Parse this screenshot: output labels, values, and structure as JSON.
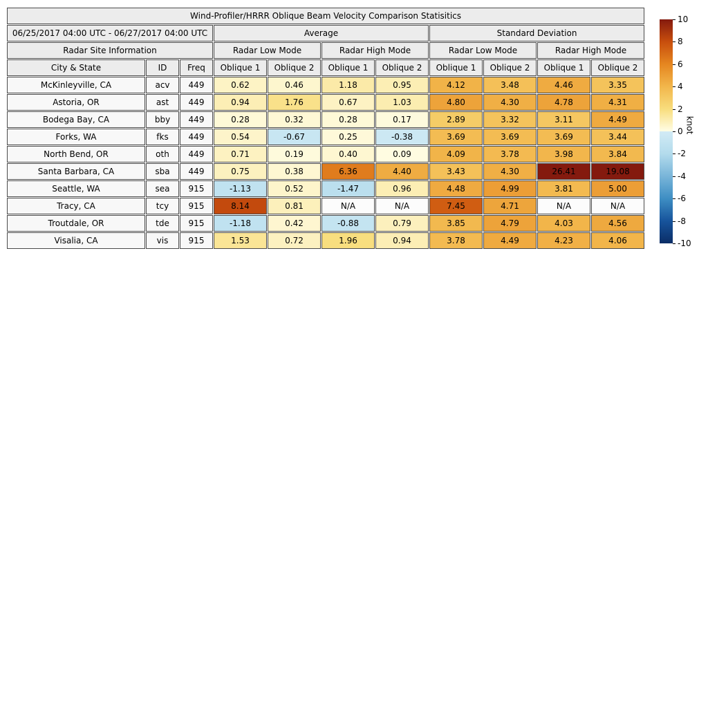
{
  "chart_data": {
    "type": "heatmap",
    "title": "Wind-Profiler/HRRR Oblique Beam Velocity Comparison Statisitics",
    "unit": "knot",
    "value_range": [
      -10,
      10
    ],
    "rows": [
      {
        "city": "McKinleyville, CA",
        "id": "acv",
        "freq": "449",
        "values": [
          "0.62",
          "0.46",
          "1.18",
          "0.95",
          "4.12",
          "3.48",
          "4.46",
          "3.35"
        ]
      },
      {
        "city": "Astoria, OR",
        "id": "ast",
        "freq": "449",
        "values": [
          "0.94",
          "1.76",
          "0.67",
          "1.03",
          "4.80",
          "4.30",
          "4.78",
          "4.31"
        ]
      },
      {
        "city": "Bodega Bay, CA",
        "id": "bby",
        "freq": "449",
        "values": [
          "0.28",
          "0.32",
          "0.28",
          "0.17",
          "2.89",
          "3.32",
          "3.11",
          "4.49"
        ]
      },
      {
        "city": "Forks, WA",
        "id": "fks",
        "freq": "449",
        "values": [
          "0.54",
          "-0.67",
          "0.25",
          "-0.38",
          "3.69",
          "3.69",
          "3.69",
          "3.44"
        ]
      },
      {
        "city": "North Bend, OR",
        "id": "oth",
        "freq": "449",
        "values": [
          "0.71",
          "0.19",
          "0.40",
          "0.09",
          "4.09",
          "3.78",
          "3.98",
          "3.84"
        ]
      },
      {
        "city": "Santa Barbara, CA",
        "id": "sba",
        "freq": "449",
        "values": [
          "0.75",
          "0.38",
          "6.36",
          "4.40",
          "3.43",
          "4.30",
          "26.41",
          "19.08"
        ]
      },
      {
        "city": "Seattle, WA",
        "id": "sea",
        "freq": "915",
        "values": [
          "-1.13",
          "0.52",
          "-1.47",
          "0.96",
          "4.48",
          "4.99",
          "3.81",
          "5.00"
        ]
      },
      {
        "city": "Tracy, CA",
        "id": "tcy",
        "freq": "915",
        "values": [
          "8.14",
          "0.81",
          "N/A",
          "N/A",
          "7.45",
          "4.71",
          "N/A",
          "N/A"
        ]
      },
      {
        "city": "Troutdale, OR",
        "id": "tde",
        "freq": "915",
        "values": [
          "-1.18",
          "0.42",
          "-0.88",
          "0.79",
          "3.85",
          "4.79",
          "4.03",
          "4.56"
        ]
      },
      {
        "city": "Visalia, CA",
        "id": "vis",
        "freq": "915",
        "values": [
          "1.53",
          "0.72",
          "1.96",
          "0.94",
          "3.78",
          "4.49",
          "4.23",
          "4.06"
        ]
      }
    ]
  },
  "header": {
    "date_range": "06/25/2017 04:00 UTC - 06/27/2017 04:00 UTC",
    "stat_groups": [
      "Average",
      "Standard Deviation"
    ],
    "site_info": "Radar Site Information",
    "mode_labels": [
      "Radar Low Mode",
      "Radar High Mode",
      "Radar Low Mode",
      "Radar High Mode"
    ],
    "column_labels": [
      "City & State",
      "ID",
      "Freq",
      "Oblique 1",
      "Oblique 2",
      "Oblique 1",
      "Oblique 2",
      "Oblique 1",
      "Oblique 2",
      "Oblique 1",
      "Oblique 2"
    ]
  },
  "colorbar": {
    "label": "knot",
    "min": -10,
    "max": 10,
    "ticks": [
      "10",
      "8",
      "6",
      "4",
      "2",
      "0",
      "-2",
      "-4",
      "-6",
      "-8",
      "-10"
    ],
    "positive_stops": [
      [
        0,
        "#fffde6"
      ],
      [
        2,
        "#f8dd7d"
      ],
      [
        4,
        "#f2b64b"
      ],
      [
        6,
        "#e58620"
      ],
      [
        8,
        "#c84e0d"
      ],
      [
        10,
        "#841a0e"
      ]
    ],
    "negative_stops": [
      [
        -10,
        "#0b2d66"
      ],
      [
        -8,
        "#17549c"
      ],
      [
        -6,
        "#3e8ec3"
      ],
      [
        -4,
        "#79b5d9"
      ],
      [
        -2,
        "#b3dbec"
      ],
      [
        0,
        "#d2ebf5"
      ]
    ]
  },
  "colors": {
    "background": "#ffffff",
    "border": "#4a4a4a",
    "header_bg": "#ececec",
    "label_bg": "#f8f8f8",
    "na_bg": "#fcfcfc",
    "text": "#000000"
  }
}
